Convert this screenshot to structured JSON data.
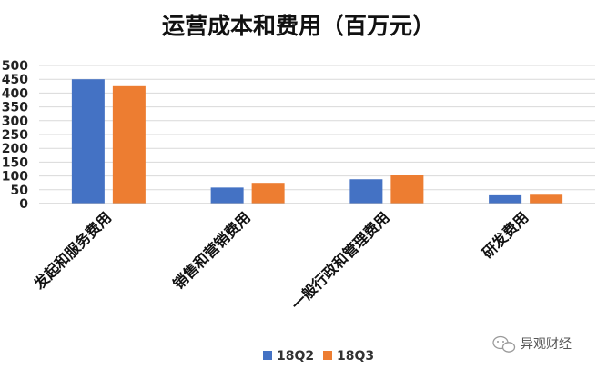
{
  "chart_data": {
    "type": "bar",
    "title": "运营成本和费用（百万元）",
    "categories": [
      "发起和服务费用",
      "销售和营销费用",
      "一般行政和管理费用",
      "研发费用"
    ],
    "series": [
      {
        "name": "18Q2",
        "values": [
          450,
          58,
          88,
          30
        ],
        "color": "#4472C4"
      },
      {
        "name": "18Q3",
        "values": [
          425,
          75,
          102,
          32
        ],
        "color": "#ED7D31"
      }
    ],
    "ylim": [
      0,
      500
    ],
    "yticks": [
      0,
      50,
      100,
      150,
      200,
      250,
      300,
      350,
      400,
      450,
      500
    ],
    "grid": true,
    "legend_position": "bottom-center"
  },
  "watermark": {
    "text": "异观财经",
    "icon": "wechat-icon"
  }
}
